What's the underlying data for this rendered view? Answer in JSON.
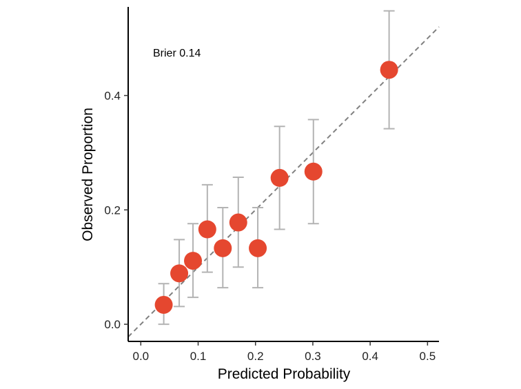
{
  "chart_data": {
    "type": "scatter",
    "title": "",
    "xlabel": "Predicted Probability",
    "ylabel": "Observed Proportion",
    "annotation": "Brier 0.14",
    "xlim": [
      -0.022,
      0.52
    ],
    "ylim": [
      -0.03,
      0.555
    ],
    "x_ticks": [
      0.0,
      0.1,
      0.2,
      0.3,
      0.4,
      0.5
    ],
    "x_tick_labels": [
      "0.0",
      "0.1",
      "0.2",
      "0.3",
      "0.4",
      "0.5"
    ],
    "y_ticks": [
      0.0,
      0.2,
      0.4
    ],
    "y_tick_labels": [
      "0.0",
      "0.2",
      "0.4"
    ],
    "grid": false,
    "reference_line": "identity",
    "colors": {
      "point": "#e5472f",
      "errorbar": "#b3b3b3",
      "reference": "#808080"
    },
    "points": [
      {
        "x": 0.04,
        "y": 0.034,
        "lower": 0.0,
        "upper": 0.071
      },
      {
        "x": 0.067,
        "y": 0.089,
        "lower": 0.031,
        "upper": 0.148
      },
      {
        "x": 0.091,
        "y": 0.111,
        "lower": 0.047,
        "upper": 0.176
      },
      {
        "x": 0.116,
        "y": 0.166,
        "lower": 0.091,
        "upper": 0.244
      },
      {
        "x": 0.143,
        "y": 0.133,
        "lower": 0.064,
        "upper": 0.204
      },
      {
        "x": 0.17,
        "y": 0.178,
        "lower": 0.1,
        "upper": 0.257
      },
      {
        "x": 0.204,
        "y": 0.133,
        "lower": 0.064,
        "upper": 0.204
      },
      {
        "x": 0.242,
        "y": 0.256,
        "lower": 0.166,
        "upper": 0.346
      },
      {
        "x": 0.301,
        "y": 0.267,
        "lower": 0.176,
        "upper": 0.358
      },
      {
        "x": 0.433,
        "y": 0.445,
        "lower": 0.342,
        "upper": 0.548
      }
    ]
  }
}
